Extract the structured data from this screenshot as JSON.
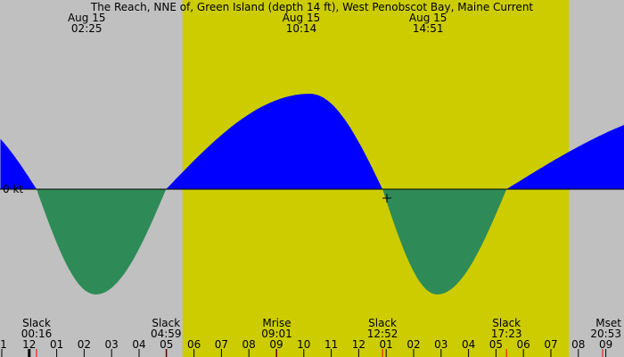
{
  "chart_data": {
    "type": "area",
    "title": "The Reach, NNE of, Green Island (depth 14 ft), West Penobscot Bay, Maine Current",
    "zero_label": "0 kt",
    "hour_ticks": [
      ".1",
      "12",
      "01",
      "02",
      "03",
      "04",
      "05",
      "06",
      "07",
      "08",
      "09",
      "10",
      "11",
      "12",
      "01",
      "02",
      "03",
      "04",
      "05",
      "06",
      "07",
      "08",
      "09"
    ],
    "top_events": [
      {
        "date": "Aug 15",
        "time": "02:25"
      },
      {
        "date": "Aug 15",
        "time": "10:14"
      },
      {
        "date": "Aug 15",
        "time": "14:51"
      }
    ],
    "bottom_events": [
      {
        "label": "Slack",
        "time": "00:16"
      },
      {
        "label": "Slack",
        "time": "04:59"
      },
      {
        "label": "Mrise",
        "time": "09:01"
      },
      {
        "label": "Slack",
        "time": "12:52"
      },
      {
        "label": "Slack",
        "time": "17:23"
      },
      {
        "label": "Mset",
        "time": "20:53"
      }
    ],
    "daylight": {
      "start": "05:35",
      "end": "19:39"
    },
    "extremes": [
      {
        "time": "02:25",
        "kind": "ebb"
      },
      {
        "time": "10:14",
        "kind": "flood"
      },
      {
        "time": "14:51",
        "kind": "ebb"
      }
    ],
    "colors": {
      "night": "#c0c0c0",
      "day": "#cccc00",
      "flood": "#0000ff",
      "ebb": "#2e8b57"
    }
  }
}
